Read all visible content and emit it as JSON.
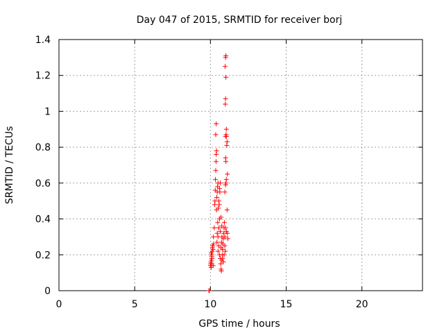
{
  "chart_data": {
    "type": "scatter",
    "title": "Day 047 of 2015, SRMTID for receiver borj",
    "xlabel": "GPS time / hours",
    "ylabel": "SRMTID / TECUs",
    "xlim": [
      0,
      24
    ],
    "ylim": [
      0,
      1.4
    ],
    "x_ticks": [
      0,
      5,
      10,
      15,
      20
    ],
    "x_tick_labels": [
      "0",
      "5",
      "10",
      "15",
      "20"
    ],
    "y_ticks": [
      0,
      0.2,
      0.4,
      0.6,
      0.8,
      1.0,
      1.2,
      1.4
    ],
    "y_tick_labels": [
      "0",
      "0.2",
      "0.4",
      "0.6",
      "0.8",
      "1",
      "1.2",
      "1.4"
    ],
    "grid": true,
    "marker": "+",
    "series": [
      {
        "name": "SRMTID",
        "color": "#ff0000",
        "points": [
          [
            9.9,
            0.0
          ],
          [
            9.93,
            0.0
          ],
          [
            10.0,
            0.14
          ],
          [
            10.02,
            0.15
          ],
          [
            10.03,
            0.16
          ],
          [
            10.05,
            0.13
          ],
          [
            10.07,
            0.17
          ],
          [
            10.08,
            0.19
          ],
          [
            10.1,
            0.2
          ],
          [
            10.12,
            0.22
          ],
          [
            10.13,
            0.24
          ],
          [
            10.15,
            0.25
          ],
          [
            10.1,
            0.18
          ],
          [
            10.05,
            0.21
          ],
          [
            10.17,
            0.23
          ],
          [
            10.2,
            0.26
          ],
          [
            10.08,
            0.15
          ],
          [
            10.18,
            0.14
          ],
          [
            10.2,
            0.3
          ],
          [
            10.25,
            0.35
          ],
          [
            10.28,
            0.48
          ],
          [
            10.3,
            0.5
          ],
          [
            10.32,
            0.56
          ],
          [
            10.33,
            0.62
          ],
          [
            10.35,
            0.67
          ],
          [
            10.37,
            0.72
          ],
          [
            10.38,
            0.76
          ],
          [
            10.4,
            0.78
          ],
          [
            10.35,
            0.87
          ],
          [
            10.38,
            0.93
          ],
          [
            10.4,
            0.45
          ],
          [
            10.42,
            0.52
          ],
          [
            10.45,
            0.55
          ],
          [
            10.47,
            0.58
          ],
          [
            10.5,
            0.6
          ],
          [
            10.52,
            0.46
          ],
          [
            10.55,
            0.5
          ],
          [
            10.48,
            0.38
          ],
          [
            10.45,
            0.32
          ],
          [
            10.43,
            0.27
          ],
          [
            10.5,
            0.3
          ],
          [
            10.55,
            0.35
          ],
          [
            10.6,
            0.4
          ],
          [
            10.62,
            0.55
          ],
          [
            10.65,
            0.6
          ],
          [
            10.6,
            0.57
          ],
          [
            10.58,
            0.48
          ],
          [
            10.5,
            0.22
          ],
          [
            10.55,
            0.25
          ],
          [
            10.6,
            0.2
          ],
          [
            10.65,
            0.18
          ],
          [
            10.68,
            0.15
          ],
          [
            10.7,
            0.12
          ],
          [
            10.72,
            0.11
          ],
          [
            10.75,
            0.17
          ],
          [
            10.78,
            0.2
          ],
          [
            10.8,
            0.23
          ],
          [
            10.82,
            0.26
          ],
          [
            10.85,
            0.29
          ],
          [
            10.88,
            0.32
          ],
          [
            10.7,
            0.24
          ],
          [
            10.73,
            0.27
          ],
          [
            10.76,
            0.3
          ],
          [
            10.8,
            0.18
          ],
          [
            10.85,
            0.16
          ],
          [
            10.9,
            0.2
          ],
          [
            10.95,
            0.25
          ],
          [
            10.9,
            0.35
          ],
          [
            10.92,
            0.38
          ],
          [
            10.95,
            0.3
          ],
          [
            10.98,
            0.22
          ],
          [
            10.75,
            0.36
          ],
          [
            10.7,
            0.41
          ],
          [
            10.65,
            0.33
          ],
          [
            10.95,
            0.55
          ],
          [
            11.0,
            0.59
          ],
          [
            11.02,
            0.6
          ],
          [
            11.05,
            0.62
          ],
          [
            11.0,
            0.74
          ],
          [
            11.02,
            0.72
          ],
          [
            11.05,
            0.86
          ],
          [
            11.03,
            0.87
          ],
          [
            11.0,
            0.86
          ],
          [
            11.05,
            0.9
          ],
          [
            11.08,
            0.81
          ],
          [
            11.1,
            0.83
          ],
          [
            11.12,
            0.65
          ],
          [
            10.98,
            1.04
          ],
          [
            11.0,
            1.07
          ],
          [
            11.02,
            1.19
          ],
          [
            10.97,
            1.25
          ],
          [
            11.0,
            1.3
          ],
          [
            11.02,
            1.31
          ],
          [
            11.1,
            0.45
          ],
          [
            11.12,
            0.32
          ],
          [
            11.15,
            0.29
          ],
          [
            11.05,
            0.33
          ],
          [
            11.0,
            0.35
          ]
        ]
      }
    ]
  }
}
